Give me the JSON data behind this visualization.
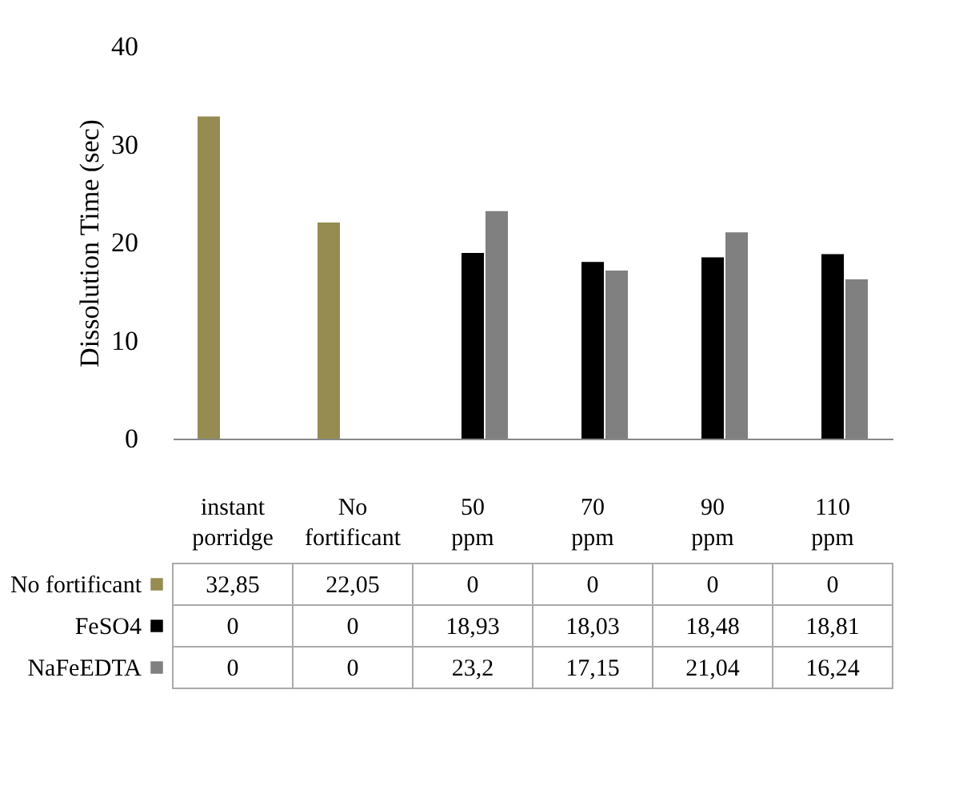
{
  "chart_data": {
    "type": "bar",
    "ylabel": "Dissolution Time (sec)",
    "categories": [
      "instant porridge",
      "No fortificant",
      "50 ppm",
      "70 ppm",
      "90 ppm",
      "110 ppm"
    ],
    "series": [
      {
        "name": "No fortificant",
        "color": "#968c52",
        "values": [
          32.85,
          22.05,
          0,
          0,
          0,
          0
        ],
        "value_labels": [
          "32,85",
          "22,05",
          "0",
          "0",
          "0",
          "0"
        ]
      },
      {
        "name": "FeSO4",
        "color": "#000000",
        "values": [
          0,
          0,
          18.93,
          18.03,
          18.48,
          18.81
        ],
        "value_labels": [
          "0",
          "0",
          "18,93",
          "18,03",
          "18,48",
          "18,81"
        ]
      },
      {
        "name": "NaFeEDTA",
        "color": "#808080",
        "values": [
          0,
          0,
          23.2,
          17.15,
          21.04,
          16.24
        ],
        "value_labels": [
          "0",
          "0",
          "23,2",
          "17,15",
          "21,04",
          "16,24"
        ]
      }
    ],
    "ylim": [
      0,
      40
    ],
    "yticks": [
      0,
      10,
      20,
      30,
      40
    ],
    "grid": false,
    "legend": "bottom"
  }
}
